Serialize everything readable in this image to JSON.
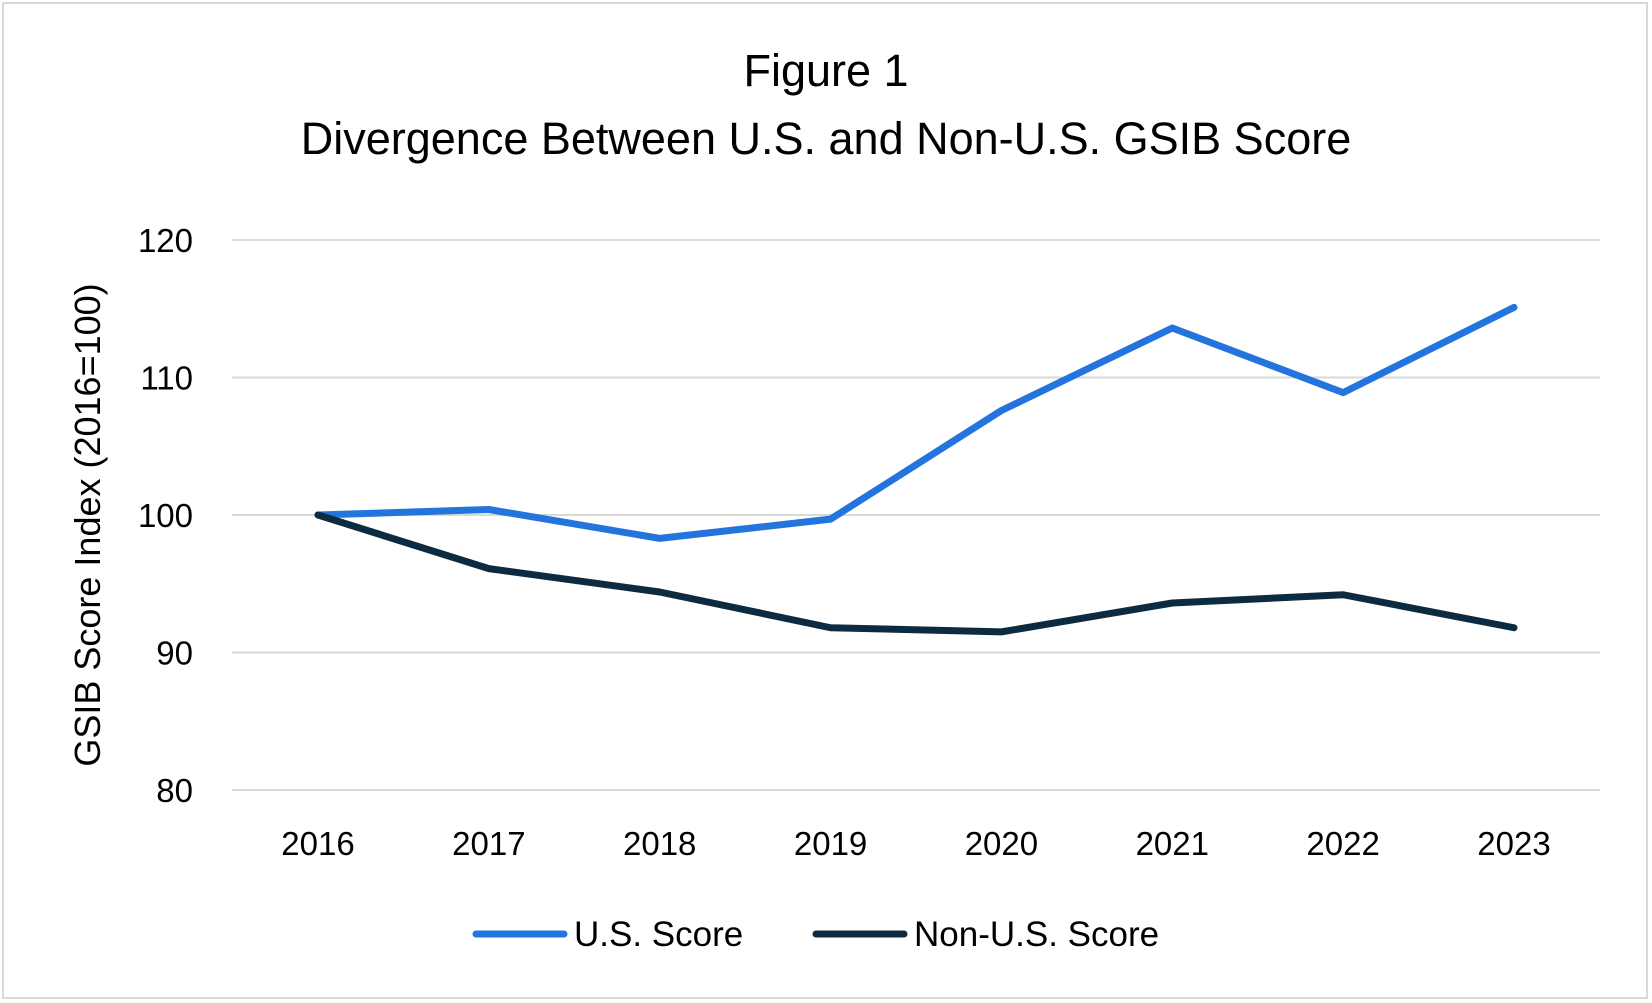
{
  "chart_data": {
    "type": "line",
    "title": "Figure 1",
    "subtitle": "Divergence Between U.S. and Non-U.S. GSIB Score",
    "xlabel": "",
    "ylabel": "GSIB Score Index (2016=100)",
    "categories": [
      "2016",
      "2017",
      "2018",
      "2019",
      "2020",
      "2021",
      "2022",
      "2023"
    ],
    "ylim": [
      80,
      120
    ],
    "yticks": [
      80,
      90,
      100,
      110,
      120
    ],
    "grid": true,
    "legend_position": "bottom",
    "series": [
      {
        "name": "U.S. Score",
        "color": "#2474dd",
        "values": [
          100,
          100.4,
          98.3,
          99.7,
          107.6,
          113.6,
          108.9,
          115.1
        ]
      },
      {
        "name": "Non-U.S. Score",
        "color": "#0c2b41",
        "values": [
          100,
          96.1,
          94.4,
          91.8,
          91.5,
          93.6,
          94.2,
          91.8
        ]
      }
    ]
  }
}
